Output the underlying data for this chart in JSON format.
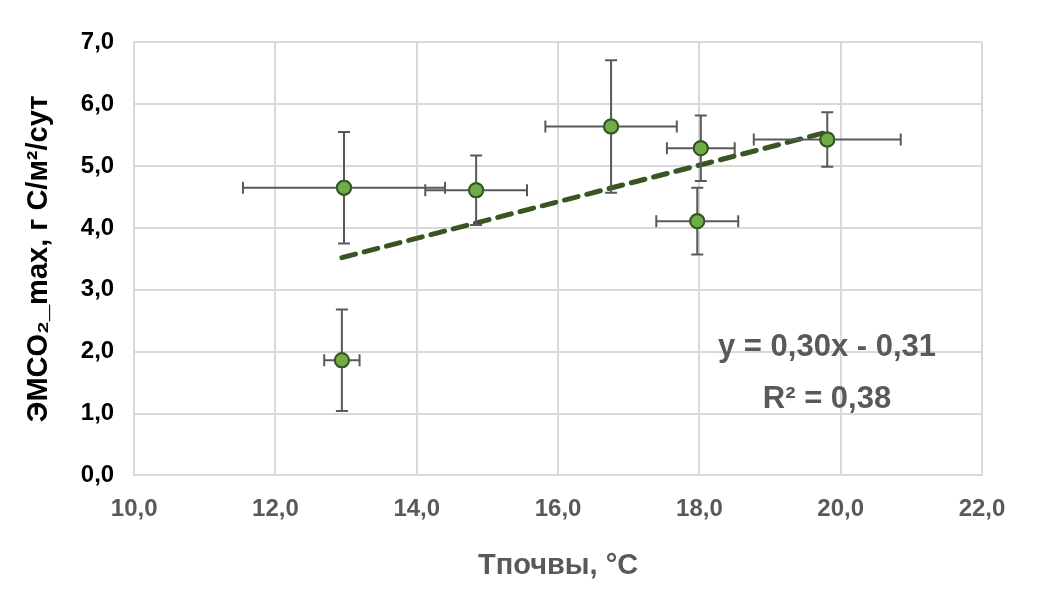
{
  "chart_data": {
    "type": "scatter",
    "xlabel": "Tпочвы, °C",
    "ylabel": "ЭМCO₂_max, г С/м²/сут",
    "xlim": [
      10,
      22
    ],
    "xticks": [
      {
        "value": 10,
        "label": "10,0"
      },
      {
        "value": 12,
        "label": "12,0"
      },
      {
        "value": 14,
        "label": "14,0"
      },
      {
        "value": 16,
        "label": "16,0"
      },
      {
        "value": 18,
        "label": "18,0"
      },
      {
        "value": 20,
        "label": "20,0"
      },
      {
        "value": 22,
        "label": "22,0"
      }
    ],
    "ylim": [
      0,
      7
    ],
    "yticks": [
      {
        "value": 0,
        "label": "0,0"
      },
      {
        "value": 1,
        "label": "1,0"
      },
      {
        "value": 2,
        "label": "2,0"
      },
      {
        "value": 3,
        "label": "3,0"
      },
      {
        "value": 4,
        "label": "4,0"
      },
      {
        "value": 5,
        "label": "5,0"
      },
      {
        "value": 6,
        "label": "6,0"
      },
      {
        "value": 7,
        "label": "7,0"
      }
    ],
    "grid": true,
    "series": [
      {
        "color": "#70ad47",
        "marker": "circle",
        "x": [
          12.97,
          14.84,
          12.94,
          16.75,
          18.02,
          17.97,
          19.81
        ],
        "values": [
          4.65,
          4.61,
          1.86,
          5.64,
          5.29,
          4.11,
          5.43
        ],
        "errors": [
          0.9,
          0.56,
          0.82,
          1.07,
          0.53,
          0.54,
          0.44
        ],
        "xerrors": [
          1.43,
          0.72,
          0.25,
          0.93,
          0.48,
          0.58,
          1.04
        ]
      },
      {
        "type": "line",
        "color": "#375623",
        "line_style": "dashed",
        "marker": "none",
        "x": [
          12.94,
          19.81
        ],
        "values": [
          3.52,
          5.55
        ]
      }
    ],
    "annotations": [
      "y = 0,30x - 0,31",
      "R² = 0,38"
    ]
  }
}
